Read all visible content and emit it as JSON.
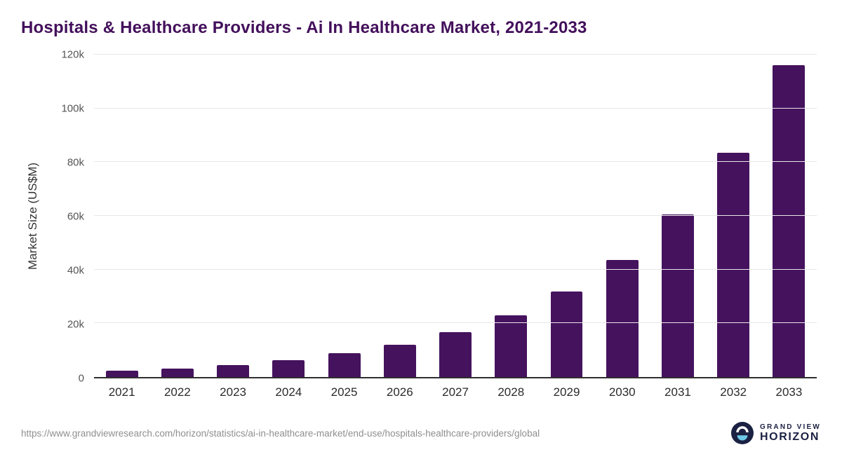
{
  "header": {
    "title": "Hospitals & Healthcare Providers - Ai In Healthcare Market, 2021-2033"
  },
  "chart_data": {
    "type": "bar",
    "title": "Hospitals & Healthcare Providers - Ai In Healthcare Market, 2021-2033",
    "categories": [
      "2021",
      "2022",
      "2023",
      "2024",
      "2025",
      "2026",
      "2027",
      "2028",
      "2029",
      "2030",
      "2031",
      "2032",
      "2033"
    ],
    "values": [
      2300,
      3100,
      4400,
      6200,
      8800,
      12100,
      16800,
      23000,
      31800,
      43600,
      60400,
      83600,
      116000
    ],
    "xlabel": "",
    "ylabel": "Market Size (US$M)",
    "ylim": [
      0,
      120000
    ],
    "yticks": [
      {
        "value": 0,
        "label": "0"
      },
      {
        "value": 20000,
        "label": "20k"
      },
      {
        "value": 40000,
        "label": "40k"
      },
      {
        "value": 60000,
        "label": "60k"
      },
      {
        "value": 80000,
        "label": "80k"
      },
      {
        "value": 100000,
        "label": "100k"
      },
      {
        "value": 120000,
        "label": "120k"
      }
    ],
    "grid": "horizontal",
    "legend": "none",
    "bar_color": "#45125e"
  },
  "footer": {
    "source_url": "https://www.grandviewresearch.com/horizon/statistics/ai-in-healthcare-market/end-use/hospitals-healthcare-providers/global",
    "logo": {
      "line1": "GRAND VIEW",
      "line2": "HORIZON"
    }
  },
  "colors": {
    "title": "#430f5b",
    "bar": "#45125e",
    "gridline": "#e8e8e8",
    "axis": "#2f2f2f",
    "logo_navy": "#1b2142",
    "logo_blue": "#6ec9e8"
  }
}
